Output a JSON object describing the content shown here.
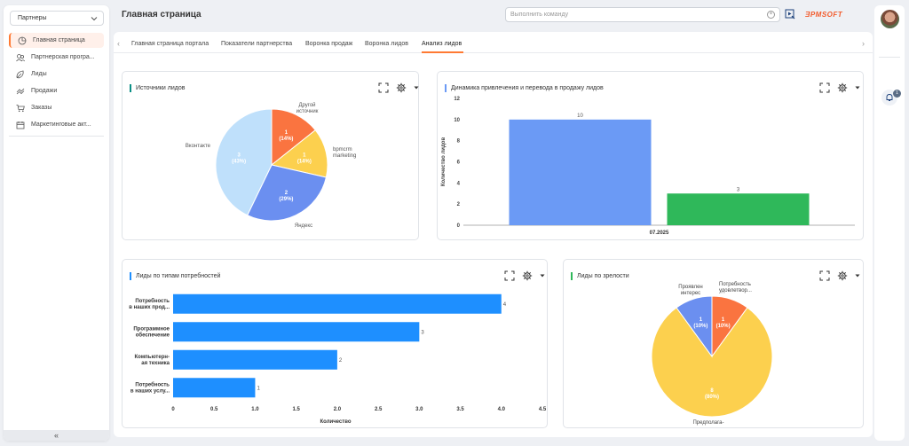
{
  "sidebar": {
    "selector": "Партнеры",
    "items": [
      {
        "label": "Главная страница",
        "icon": "dashboard-icon",
        "active": true
      },
      {
        "label": "Партнерская програ...",
        "icon": "partner-program-icon",
        "active": false
      },
      {
        "label": "Лиды",
        "icon": "leads-icon",
        "active": false
      },
      {
        "label": "Продажи",
        "icon": "sales-icon",
        "active": false
      },
      {
        "label": "Заказы",
        "icon": "cart-icon",
        "active": false
      },
      {
        "label": "Маркетинговые акт...",
        "icon": "calendar-icon",
        "active": false
      }
    ],
    "collapse_label": "«"
  },
  "header": {
    "title": "Главная страница",
    "command_placeholder": "Выполнить команду",
    "logo": "ƎPMSOFT"
  },
  "notifications": {
    "count": "1"
  },
  "tabs": [
    {
      "label": "Главная страница портала",
      "active": false
    },
    {
      "label": "Показатели партнерства",
      "active": false
    },
    {
      "label": "Воронка продаж",
      "active": false
    },
    {
      "label": "Воронка лидов",
      "active": false
    },
    {
      "label": "Анализ лидов",
      "active": true
    }
  ],
  "colors": {
    "accent": "#ff7a33",
    "teal": "#0b8f85",
    "blue": "#1e8fff",
    "green": "#2fb85a"
  },
  "chart_data": [
    {
      "type": "pie",
      "title": "Источники лидов",
      "slices": [
        {
          "label": "Другой источник",
          "value": 1,
          "percent": "14%",
          "color": "#fa7440"
        },
        {
          "label": "bpmcrm marketing",
          "value": 1,
          "percent": "14%",
          "color": "#fcd04e"
        },
        {
          "label": "Яндекс",
          "value": 2,
          "percent": "29%",
          "color": "#6b8ff0"
        },
        {
          "label": "Вконтакте",
          "value": 3,
          "percent": "43%",
          "color": "#bfe0fb"
        }
      ]
    },
    {
      "type": "bar",
      "title": "Динамика привлечения и перевода в продажу лидов",
      "categories": [
        "07.2025"
      ],
      "series": [
        {
          "values": [
            10
          ],
          "color": "#6b9af5"
        },
        {
          "values": [
            3
          ],
          "color": "#2fb85a"
        }
      ],
      "ylabel": "Количество лидов",
      "ylim": [
        0,
        12
      ],
      "yticks": [
        0,
        2,
        4,
        6,
        8,
        10,
        12
      ]
    },
    {
      "type": "bar",
      "orientation": "horizontal",
      "title": "Лиды по типам потребностей",
      "categories": [
        "Потребность в наших прод...",
        "Программное обеспечение",
        "Компьютерн-ая техника",
        "Потребность в наших услу..."
      ],
      "category_lines": [
        [
          "Потребность",
          "в наших прод..."
        ],
        [
          "Программное",
          "обеспечение"
        ],
        [
          "Компьютерн-",
          "ая техника"
        ],
        [
          "Потребность",
          "в наших услу..."
        ]
      ],
      "values": [
        4,
        3,
        2,
        1
      ],
      "color": "#1e8fff",
      "xlabel": "Количество",
      "xlim": [
        0,
        4.5
      ],
      "xticks": [
        0,
        0.5,
        1.0,
        1.5,
        2.0,
        2.5,
        3.0,
        3.5,
        4.0,
        4.5
      ],
      "xtick_labels": [
        "0",
        "0.5",
        "1.0",
        "1.5",
        "2.0",
        "2.5",
        "3.0",
        "3.5",
        "4.0",
        "4.5"
      ]
    },
    {
      "type": "pie",
      "title": "Лиды по зрелости",
      "slices": [
        {
          "label": "Потребность удовлетвор...",
          "label_lines": [
            "Потребность",
            "удовлетвор..."
          ],
          "value": 1,
          "percent": "10%",
          "color": "#fa7440"
        },
        {
          "label": "Предполага...",
          "label_lines": [
            "Предполага-",
            "..."
          ],
          "value": 8,
          "percent": "80%",
          "color": "#fcd04e"
        },
        {
          "label": "Проявлен интерес",
          "label_lines": [
            "Проявлен",
            "интерес"
          ],
          "value": 1,
          "percent": "10%",
          "color": "#6b8ff0"
        }
      ]
    }
  ]
}
